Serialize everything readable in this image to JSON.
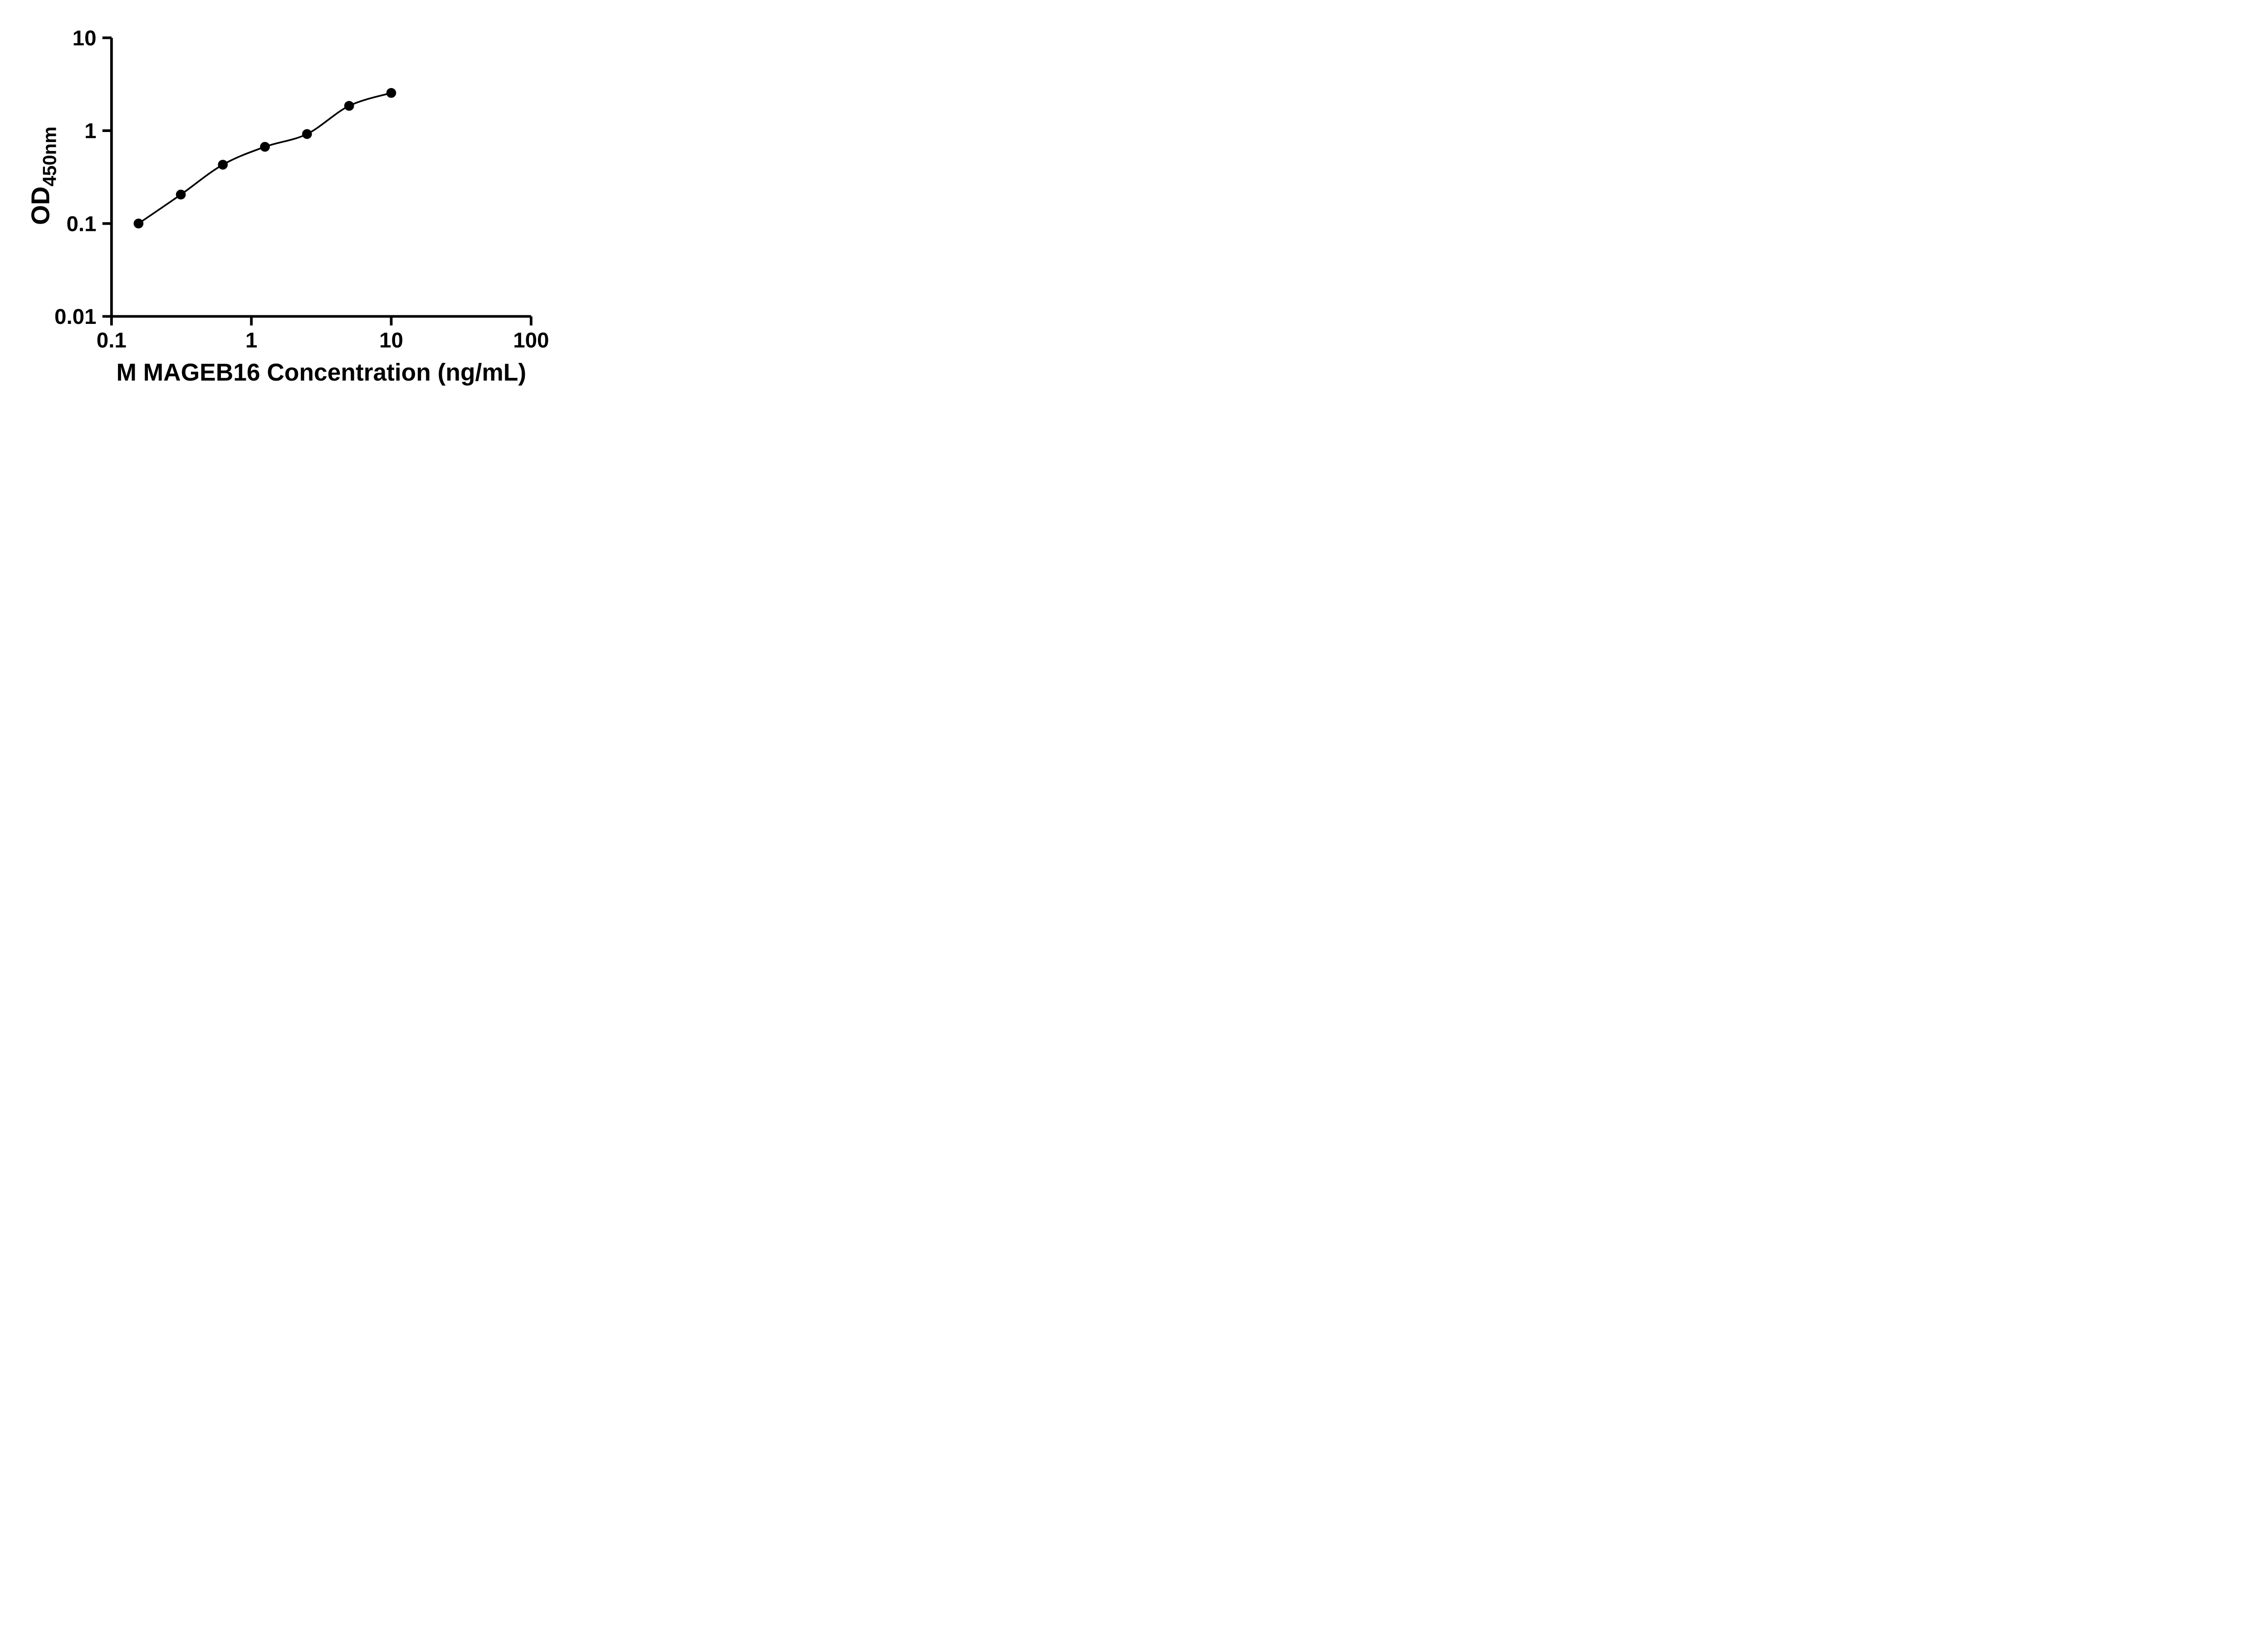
{
  "figure": {
    "background": "#ffffff"
  },
  "chart_data": {
    "type": "scatter",
    "title": "",
    "xlabel": "M MAGEB16 Concentration (ng/mL)",
    "ylabel": "OD450nm",
    "ylabel_main": "OD",
    "ylabel_sub": "450nm",
    "x_scale": "log",
    "y_scale": "log",
    "xlim": [
      0.1,
      100
    ],
    "ylim": [
      0.01,
      10
    ],
    "x_ticks": [
      0.1,
      1,
      10,
      100
    ],
    "x_tick_labels": [
      "0.1",
      "1",
      "10",
      "100"
    ],
    "y_ticks": [
      0.01,
      0.1,
      1,
      10
    ],
    "y_tick_labels": [
      "0.01",
      "0.1",
      "1",
      "10"
    ],
    "grid": false,
    "legend": false,
    "axis_color": "#000000",
    "series": [
      {
        "marker": "circle",
        "marker_color": "#000000",
        "line": "smooth",
        "line_color": "#000000",
        "points": [
          {
            "x": 0.156,
            "y": 0.1
          },
          {
            "x": 0.313,
            "y": 0.205
          },
          {
            "x": 0.625,
            "y": 0.43
          },
          {
            "x": 1.25,
            "y": 0.67
          },
          {
            "x": 2.5,
            "y": 0.92
          },
          {
            "x": 5,
            "y": 1.85
          },
          {
            "x": 10,
            "y": 2.55
          }
        ]
      }
    ]
  }
}
